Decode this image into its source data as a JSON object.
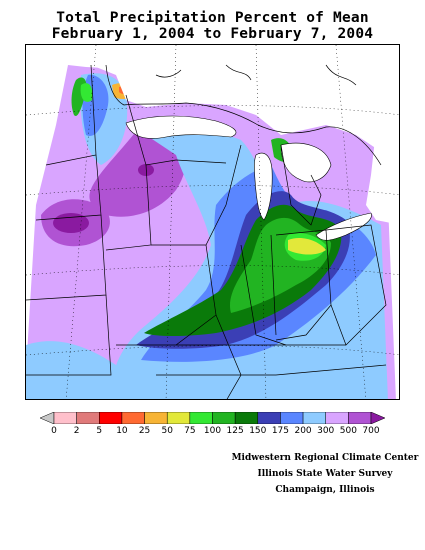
{
  "title": {
    "line1": "Total Precipitation Percent of Mean",
    "line2": "February 1, 2004 to February 7, 2004"
  },
  "legend": {
    "labels": [
      "0",
      "2",
      "5",
      "10",
      "25",
      "50",
      "75",
      "100",
      "125",
      "150",
      "175",
      "200",
      "300",
      "500",
      "700"
    ],
    "colors": [
      "#c8c8c8",
      "#ffc0cb",
      "#e07a7a",
      "#ff0000",
      "#ff6a32",
      "#f7b435",
      "#e2e83a",
      "#33e833",
      "#22b422",
      "#0a7a0a",
      "#3b3fb5",
      "#5a86ff",
      "#8ecbff",
      "#d9a5ff",
      "#b053d3",
      "#8a1aa0"
    ]
  },
  "credits": {
    "line1": "Midwestern Regional Climate Center",
    "line2": "Illinois State Water Survey",
    "line3": "Champaign, Illinois"
  }
}
